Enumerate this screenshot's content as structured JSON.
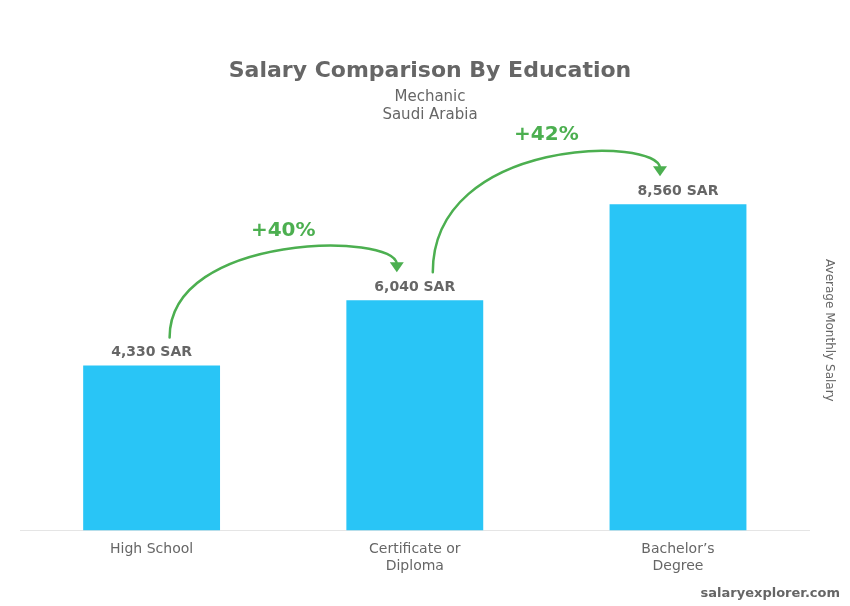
{
  "chart_data": {
    "type": "bar",
    "title": "Salary Comparison By Education",
    "subtitle": [
      "Mechanic",
      "Saudi Arabia"
    ],
    "ylabel": "Average Monthly Salary",
    "categories": [
      "High School",
      "Certificate or\nDiploma",
      "Bachelor’s\nDegree"
    ],
    "values": [
      4330,
      6040,
      8560
    ],
    "value_labels": [
      "4,330 SAR",
      "6,040 SAR",
      "8,560 SAR"
    ],
    "data_labels": true,
    "color": "#29c5f6",
    "ylim": [
      0,
      10500
    ],
    "grid": false,
    "tick_labels": "x",
    "annotations": [
      {
        "text": "+40%",
        "from": "High School",
        "to": "Certificate or\nDiploma"
      },
      {
        "text": "+42%",
        "from": "Certificate or\nDiploma",
        "to": "Bachelor’s\nDegree"
      },
      {
        "text": "salaryexplorer.com"
      }
    ]
  }
}
